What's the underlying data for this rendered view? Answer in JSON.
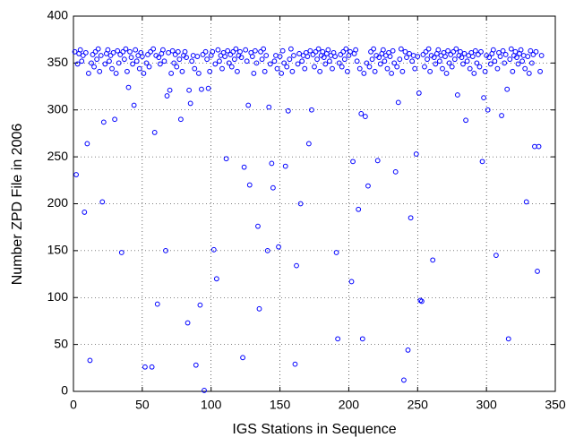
{
  "chart_data": {
    "type": "scatter",
    "xlabel": "IGS Stations in Sequence",
    "ylabel": "Number ZPD File in 2006",
    "xlim": [
      0,
      350
    ],
    "ylim": [
      0,
      400
    ],
    "xticks": [
      0,
      50,
      100,
      150,
      200,
      250,
      300,
      350
    ],
    "yticks": [
      0,
      50,
      100,
      150,
      200,
      250,
      300,
      350,
      400
    ],
    "grid": true,
    "series": [
      {
        "color": "#0000ff",
        "x": [
          1,
          2,
          3,
          4,
          5,
          6,
          7,
          8,
          9,
          10,
          11,
          12,
          13,
          14,
          15,
          16,
          17,
          18,
          19,
          20,
          21,
          22,
          23,
          24,
          25,
          26,
          27,
          28,
          29,
          30,
          31,
          32,
          33,
          34,
          35,
          36,
          37,
          38,
          39,
          40,
          41,
          42,
          43,
          44,
          45,
          46,
          47,
          48,
          49,
          50,
          51,
          52,
          53,
          54,
          55,
          56,
          57,
          58,
          59,
          60,
          61,
          62,
          63,
          64,
          65,
          66,
          67,
          68,
          69,
          70,
          71,
          72,
          73,
          74,
          75,
          76,
          77,
          78,
          79,
          80,
          81,
          82,
          83,
          84,
          85,
          86,
          87,
          88,
          89,
          90,
          91,
          92,
          93,
          94,
          95,
          96,
          97,
          98,
          99,
          100,
          101,
          102,
          103,
          104,
          105,
          106,
          107,
          108,
          109,
          110,
          111,
          112,
          113,
          114,
          115,
          116,
          117,
          118,
          119,
          120,
          121,
          122,
          123,
          124,
          125,
          126,
          127,
          128,
          129,
          130,
          131,
          132,
          133,
          134,
          135,
          136,
          137,
          138,
          139,
          140,
          141,
          142,
          143,
          144,
          145,
          146,
          147,
          148,
          149,
          150,
          151,
          152,
          153,
          154,
          155,
          156,
          157,
          158,
          159,
          160,
          161,
          162,
          163,
          164,
          165,
          166,
          167,
          168,
          169,
          170,
          171,
          172,
          173,
          174,
          175,
          176,
          177,
          178,
          179,
          180,
          181,
          182,
          183,
          184,
          185,
          186,
          187,
          188,
          189,
          190,
          191,
          192,
          193,
          194,
          195,
          196,
          197,
          198,
          199,
          200,
          201,
          202,
          203,
          204,
          205,
          206,
          207,
          208,
          209,
          210,
          211,
          212,
          213,
          214,
          215,
          216,
          217,
          218,
          219,
          220,
          221,
          222,
          223,
          224,
          225,
          226,
          227,
          228,
          229,
          230,
          231,
          232,
          233,
          234,
          235,
          236,
          237,
          238,
          239,
          240,
          241,
          242,
          243,
          244,
          245,
          246,
          247,
          248,
          249,
          250,
          251,
          252,
          253,
          254,
          255,
          256,
          257,
          258,
          259,
          260,
          261,
          262,
          263,
          264,
          265,
          266,
          267,
          268,
          269,
          270,
          271,
          272,
          273,
          274,
          275,
          276,
          277,
          278,
          279,
          280,
          281,
          282,
          283,
          284,
          285,
          286,
          287,
          288,
          289,
          290,
          291,
          292,
          293,
          294,
          295,
          296,
          297,
          298,
          299,
          300,
          301,
          302,
          303,
          304,
          305,
          306,
          307,
          308,
          309,
          310,
          311,
          312,
          313,
          314,
          315,
          316,
          317,
          318,
          319,
          320,
          321,
          322,
          323,
          324,
          325,
          326,
          327,
          328,
          329,
          330,
          331,
          332,
          333,
          334,
          335,
          336,
          337,
          338,
          339,
          340
        ],
        "values": [
          362,
          231,
          349,
          360,
          364,
          352,
          358,
          191,
          361,
          264,
          339,
          33,
          350,
          359,
          346,
          362,
          354,
          365,
          341,
          358,
          202,
          287,
          349,
          360,
          364,
          352,
          358,
          344,
          361,
          290,
          339,
          363,
          350,
          359,
          148,
          362,
          354,
          365,
          341,
          324,
          362,
          356,
          349,
          305,
          364,
          352,
          358,
          344,
          361,
          357,
          339,
          26,
          350,
          359,
          346,
          362,
          26,
          365,
          276,
          358,
          93,
          356,
          349,
          360,
          364,
          352,
          150,
          315,
          361,
          321,
          339,
          363,
          350,
          359,
          346,
          362,
          354,
          290,
          341,
          358,
          362,
          356,
          73,
          321,
          307,
          352,
          358,
          344,
          28,
          357,
          339,
          92,
          322,
          359,
          1,
          362,
          354,
          323,
          341,
          358,
          362,
          151,
          349,
          120,
          364,
          352,
          358,
          344,
          361,
          357,
          248,
          363,
          350,
          359,
          346,
          362,
          354,
          365,
          341,
          358,
          362,
          356,
          36,
          239,
          364,
          352,
          305,
          220,
          361,
          357,
          339,
          363,
          350,
          176,
          88,
          362,
          354,
          365,
          341,
          358,
          150,
          303,
          349,
          243,
          217,
          352,
          358,
          344,
          154,
          357,
          339,
          363,
          350,
          240,
          346,
          299,
          354,
          365,
          341,
          358,
          29,
          134,
          349,
          360,
          200,
          352,
          358,
          344,
          361,
          357,
          264,
          363,
          300,
          359,
          346,
          362,
          354,
          365,
          341,
          358,
          362,
          356,
          349,
          360,
          364,
          352,
          358,
          344,
          361,
          357,
          148,
          56,
          350,
          359,
          346,
          362,
          354,
          365,
          341,
          358,
          362,
          117,
          245,
          360,
          364,
          352,
          194,
          344,
          296,
          56,
          339,
          293,
          350,
          219,
          346,
          362,
          354,
          365,
          341,
          358,
          246,
          356,
          349,
          360,
          364,
          352,
          358,
          344,
          361,
          357,
          339,
          363,
          350,
          234,
          346,
          308,
          354,
          365,
          341,
          12,
          362,
          356,
          44,
          360,
          185,
          352,
          358,
          344,
          253,
          357,
          318,
          97,
          96,
          359,
          346,
          362,
          354,
          365,
          341,
          358,
          140,
          356,
          349,
          360,
          364,
          352,
          358,
          344,
          361,
          357,
          339,
          363,
          350,
          359,
          346,
          362,
          354,
          365,
          316,
          358,
          362,
          356,
          349,
          360,
          289,
          352,
          358,
          344,
          361,
          357,
          339,
          363,
          350,
          359,
          346,
          362,
          245,
          313,
          341,
          358,
          300,
          356,
          349,
          360,
          364,
          352,
          145,
          344,
          361,
          357,
          294,
          363,
          350,
          359,
          322,
          56,
          354,
          365,
          341,
          358,
          362,
          356,
          349,
          360,
          364,
          352,
          358,
          344,
          202,
          357,
          339,
          363,
          350,
          359,
          261,
          362,
          128,
          261,
          341,
          358
        ]
      }
    ]
  }
}
